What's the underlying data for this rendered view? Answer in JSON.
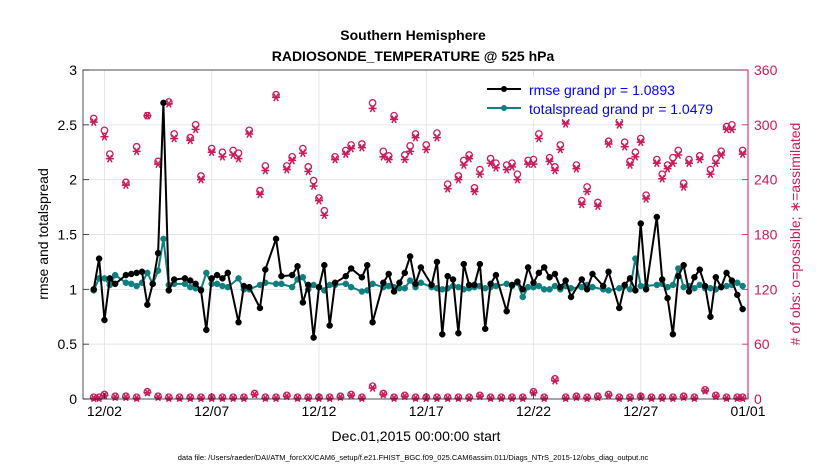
{
  "chart_data": {
    "type": "line",
    "title": "Southern Hemisphere",
    "subtitle": "RADIOSONDE_TEMPERATURE @ 525 hPa",
    "xlabel": "Dec.01,2015 00:00:00 start",
    "ylabel_left": "rmse and totalspread",
    "ylabel_right": "# of obs: o=possible; ∗=assimilated",
    "footnote": "data file: /Users/raeder/DAI/ATM_forcXX/CAM6_setup/f.e21.FHIST_BGC.f09_025.CAM6assim.011/Diags_NTrS_2015-12/obs_diag_output.nc",
    "xlim": [
      0.5,
      31.5
    ],
    "ylim_left": [
      0,
      3
    ],
    "ylim_right": [
      0,
      360
    ],
    "x_tick_days": [
      1.5,
      6.5,
      11.5,
      16.5,
      21.5,
      26.5,
      31.5
    ],
    "x_tick_labels": [
      "12/02",
      "12/07",
      "12/12",
      "12/17",
      "12/22",
      "12/27",
      "01/01"
    ],
    "y_ticks_left": [
      0,
      0.5,
      1,
      1.5,
      2,
      2.5,
      3
    ],
    "y_tick_labels_left": [
      "0",
      "0.5",
      "1",
      "1.5",
      "2",
      "2.5",
      "3"
    ],
    "y_ticks_right": [
      0,
      60,
      120,
      180,
      240,
      300,
      360
    ],
    "y_tick_labels_right": [
      "0",
      "60",
      "120",
      "180",
      "240",
      "300",
      "360"
    ],
    "colors": {
      "rmse": "#000000",
      "spread": "#0f7f7f",
      "obs": "#cc1a5a",
      "legend_text": "#0000ff",
      "grid": "#e6e6e6"
    },
    "legend": {
      "position": "top-right",
      "entries": [
        {
          "label": "rmse grand pr = 1.0893",
          "color": "#000000"
        },
        {
          "label": "totalspread grand pr = 1.0479",
          "color": "#0f7f7f"
        }
      ]
    },
    "series": [
      {
        "name": "rmse",
        "axis": "left",
        "x": [
          1.0,
          1.25,
          1.5,
          1.75,
          2.0,
          2.5,
          2.75,
          3.0,
          3.25,
          3.5,
          3.75,
          4.0,
          4.25,
          4.5,
          4.75,
          5.25,
          5.5,
          5.75,
          6.0,
          6.25,
          6.5,
          6.75,
          7.0,
          7.25,
          7.75,
          8.0,
          8.25,
          8.75,
          9.0,
          9.5,
          9.75,
          10.25,
          10.5,
          10.75,
          11.0,
          11.25,
          11.5,
          11.75,
          12.0,
          12.25,
          12.75,
          13.0,
          13.5,
          13.75,
          14.0,
          14.5,
          14.75,
          15.0,
          15.25,
          15.5,
          15.75,
          16.0,
          16.25,
          16.75,
          17.0,
          17.25,
          17.5,
          17.75,
          18.0,
          18.25,
          18.5,
          18.75,
          19.0,
          19.25,
          19.5,
          19.75,
          20.25,
          20.5,
          20.75,
          21.0,
          21.25,
          21.5,
          21.75,
          22.0,
          22.25,
          22.5,
          22.75,
          23.0,
          23.25,
          23.75,
          24.0,
          24.25,
          24.75,
          25.0,
          25.5,
          25.75,
          26.0,
          26.25,
          26.5,
          26.75,
          27.25,
          27.5,
          27.75,
          28.0,
          28.25,
          28.5,
          28.75,
          29.0,
          29.25,
          29.5,
          29.75,
          30.0,
          30.25,
          30.5,
          30.75,
          31.0,
          31.25
        ],
        "values": [
          1.0,
          1.28,
          0.72,
          1.1,
          1.05,
          1.13,
          1.14,
          1.15,
          1.16,
          0.86,
          1.05,
          1.33,
          2.7,
          0.99,
          1.09,
          1.1,
          1.08,
          1.05,
          0.99,
          0.63,
          1.1,
          1.13,
          1.1,
          1.15,
          0.7,
          1.03,
          1.02,
          0.83,
          1.18,
          1.46,
          1.12,
          1.13,
          1.21,
          0.88,
          1.04,
          0.56,
          1.02,
          1.22,
          0.67,
          1.06,
          1.12,
          1.19,
          1.11,
          1.22,
          0.7,
          1.06,
          1.14,
          0.98,
          1.06,
          1.15,
          1.3,
          1.05,
          1.2,
          1.04,
          1.25,
          0.59,
          1.12,
          1.09,
          0.6,
          1.23,
          1.04,
          1.04,
          1.23,
          0.64,
          1.05,
          1.13,
          0.8,
          1.04,
          1.07,
          1.0,
          1.2,
          1.06,
          1.15,
          1.2,
          1.11,
          1.14,
          1.02,
          1.08,
          0.93,
          1.09,
          1.0,
          1.14,
          1.03,
          1.16,
          0.83,
          1.04,
          1.1,
          0.99,
          1.6,
          1.0,
          1.66,
          1.09,
          0.92,
          0.59,
          1.12,
          1.22,
          0.98,
          1.11,
          1.18,
          1.03,
          0.75,
          1.11,
          1.02,
          1.15,
          1.08,
          0.95,
          0.82
        ]
      },
      {
        "name": "totalspread",
        "axis": "left",
        "x": [
          1.0,
          1.25,
          1.5,
          1.75,
          2.0,
          2.5,
          2.75,
          3.0,
          3.25,
          3.5,
          3.75,
          4.0,
          4.25,
          4.5,
          4.75,
          5.25,
          5.5,
          5.75,
          6.0,
          6.25,
          6.5,
          6.75,
          7.0,
          7.25,
          7.75,
          8.0,
          8.25,
          8.75,
          9.0,
          9.5,
          9.75,
          10.25,
          10.5,
          10.75,
          11.0,
          11.25,
          11.5,
          11.75,
          12.0,
          12.25,
          12.75,
          13.0,
          13.5,
          13.75,
          14.0,
          14.5,
          14.75,
          15.0,
          15.25,
          15.5,
          15.75,
          16.0,
          16.25,
          16.75,
          17.0,
          17.25,
          17.5,
          17.75,
          18.0,
          18.25,
          18.5,
          18.75,
          19.0,
          19.25,
          19.5,
          19.75,
          20.25,
          20.5,
          20.75,
          21.0,
          21.25,
          21.5,
          21.75,
          22.0,
          22.25,
          22.5,
          22.75,
          23.0,
          23.25,
          23.75,
          24.0,
          24.25,
          24.75,
          25.0,
          25.5,
          25.75,
          26.0,
          26.25,
          26.5,
          26.75,
          27.25,
          27.5,
          27.75,
          28.0,
          28.25,
          28.5,
          28.75,
          29.0,
          29.25,
          29.5,
          29.75,
          30.0,
          30.25,
          30.5,
          30.75,
          31.0,
          31.25
        ],
        "values": [
          0.99,
          1.1,
          1.1,
          1.04,
          1.13,
          1.06,
          1.05,
          1.03,
          1.06,
          1.15,
          1.05,
          1.17,
          1.46,
          1.04,
          1.05,
          1.05,
          1.02,
          1.01,
          1.0,
          1.15,
          1.05,
          1.05,
          1.03,
          1.02,
          1.1,
          1.0,
          1.0,
          1.04,
          1.06,
          1.05,
          1.05,
          1.02,
          1.09,
          1.11,
          1.0,
          1.04,
          1.02,
          0.99,
          1.04,
          1.04,
          1.05,
          1.02,
          0.98,
          0.99,
          1.05,
          1.02,
          1.03,
          1.02,
          1.01,
          1.01,
          1.08,
          1.02,
          1.06,
          1.02,
          1.01,
          1.0,
          1.01,
          1.03,
          1.02,
          1.0,
          1.01,
          1.02,
          1.03,
          1.01,
          1.02,
          1.03,
          1.05,
          1.03,
          1.06,
          0.93,
          1.02,
          1.02,
          1.03,
          1.0,
          1.0,
          1.03,
          1.0,
          1.03,
          1.01,
          1.02,
          1.04,
          1.02,
          1.0,
          0.99,
          1.01,
          1.03,
          1.0,
          1.28,
          1.03,
          1.03,
          1.04,
          1.05,
          1.02,
          1.04,
          1.19,
          1.02,
          1.03,
          1.01,
          1.04,
          1.01,
          1.01,
          1.0,
          1.02,
          1.03,
          1.04,
          1.06,
          1.03
        ]
      },
      {
        "name": "obs possible",
        "axis": "right",
        "marker": "o",
        "x": [
          1.0,
          1.5,
          1.75,
          2.5,
          3.0,
          3.5,
          4.0,
          4.5,
          4.75,
          5.5,
          5.75,
          6.0,
          6.5,
          7.0,
          7.5,
          7.75,
          8.25,
          8.75,
          9.0,
          9.5,
          10.0,
          10.25,
          10.75,
          11.0,
          11.25,
          11.5,
          11.75,
          12.25,
          12.75,
          13.0,
          13.5,
          14.0,
          14.5,
          14.75,
          15.0,
          15.5,
          15.75,
          16.0,
          16.5,
          17.0,
          17.5,
          18.0,
          18.25,
          18.5,
          18.75,
          19.0,
          19.5,
          19.75,
          20.25,
          20.5,
          20.75,
          21.25,
          21.5,
          21.75,
          22.25,
          22.5,
          22.75,
          23.0,
          23.5,
          23.75,
          24.0,
          24.5,
          25.0,
          25.5,
          25.75,
          26.0,
          26.25,
          26.5,
          26.75,
          27.25,
          27.5,
          27.75,
          28.0,
          28.25,
          28.5,
          28.75,
          29.25,
          29.75,
          30.0,
          30.25,
          30.5,
          30.75,
          31.25
        ],
        "values": [
          307,
          294,
          268,
          237,
          276,
          310,
          260,
          325,
          290,
          286,
          300,
          244,
          274,
          270,
          272,
          269,
          294,
          228,
          255,
          333,
          255,
          265,
          274,
          254,
          239,
          220,
          206,
          265,
          272,
          278,
          279,
          324,
          271,
          266,
          310,
          267,
          277,
          290,
          278,
          291,
          235,
          244,
          261,
          267,
          231,
          251,
          263,
          258,
          256,
          258,
          246,
          261,
          262,
          290,
          264,
          254,
          278,
          305,
          256,
          217,
          232,
          215,
          282,
          304,
          281,
          260,
          270,
          285,
          223,
          262,
          246,
          256,
          264,
          272,
          236,
          262,
          266,
          251,
          263,
          271,
          298,
          300,
          272
        ]
      },
      {
        "name": "obs assimilated",
        "axis": "right",
        "marker": "*",
        "x": [
          1.0,
          1.5,
          1.75,
          2.5,
          3.0,
          3.5,
          4.0,
          4.5,
          4.75,
          5.5,
          5.75,
          6.0,
          6.5,
          7.0,
          7.5,
          7.75,
          8.25,
          8.75,
          9.0,
          9.5,
          10.0,
          10.25,
          10.75,
          11.0,
          11.25,
          11.5,
          11.75,
          12.25,
          12.75,
          13.0,
          13.5,
          14.0,
          14.5,
          14.75,
          15.0,
          15.5,
          15.75,
          16.0,
          16.5,
          17.0,
          17.5,
          18.0,
          18.25,
          18.5,
          18.75,
          19.0,
          19.5,
          19.75,
          20.25,
          20.5,
          20.75,
          21.25,
          21.5,
          21.75,
          22.25,
          22.5,
          22.75,
          23.0,
          23.5,
          23.75,
          24.0,
          24.5,
          25.0,
          25.5,
          25.75,
          26.0,
          26.25,
          26.5,
          26.75,
          27.25,
          27.5,
          27.75,
          28.0,
          28.25,
          28.5,
          28.75,
          29.25,
          29.75,
          30.0,
          30.25,
          30.5,
          30.75,
          31.25
        ],
        "values": [
          303,
          287,
          263,
          234,
          271,
          310,
          257,
          323,
          285,
          283,
          295,
          240,
          270,
          265,
          267,
          263,
          290,
          224,
          250,
          330,
          251,
          261,
          269,
          249,
          233,
          217,
          201,
          262,
          268,
          274,
          275,
          318,
          265,
          262,
          306,
          262,
          271,
          286,
          273,
          286,
          230,
          240,
          256,
          263,
          227,
          246,
          258,
          253,
          251,
          254,
          240,
          257,
          257,
          285,
          260,
          250,
          273,
          301,
          252,
          213,
          227,
          211,
          279,
          300,
          276,
          256,
          265,
          281,
          219,
          258,
          241,
          252,
          258,
          267,
          232,
          258,
          262,
          246,
          258,
          267,
          295,
          295,
          268
        ]
      },
      {
        "name": "obs possible (bottom row)",
        "axis": "right",
        "marker": "o",
        "x": [
          1.0,
          1.25,
          1.5,
          2.0,
          2.5,
          3.0,
          3.5,
          4.0,
          4.5,
          5.0,
          5.5,
          6.0,
          6.5,
          7.0,
          7.5,
          8.0,
          8.5,
          9.0,
          9.5,
          10.0,
          10.5,
          11.0,
          11.5,
          12.0,
          12.5,
          13.0,
          13.5,
          14.0,
          14.5,
          15.0,
          15.5,
          16.0,
          16.5,
          17.0,
          17.5,
          18.0,
          18.5,
          19.0,
          19.5,
          20.0,
          20.5,
          21.0,
          21.5,
          22.0,
          22.5,
          23.0,
          23.5,
          24.0,
          24.5,
          25.0,
          25.5,
          26.0,
          26.5,
          27.0,
          27.5,
          28.0,
          28.5,
          29.0,
          29.5,
          30.0,
          30.5,
          31.0,
          31.25
        ],
        "values": [
          2,
          2,
          5,
          3,
          3,
          2,
          8,
          3,
          2,
          2,
          2,
          2,
          2,
          2,
          2,
          2,
          6,
          2,
          2,
          4,
          2,
          2,
          2,
          2,
          3,
          5,
          2,
          14,
          6,
          2,
          4,
          2,
          2,
          2,
          2,
          2,
          2,
          4,
          2,
          2,
          2,
          2,
          8,
          2,
          22,
          2,
          3,
          2,
          3,
          5,
          2,
          2,
          3,
          2,
          2,
          2,
          3,
          2,
          10,
          4,
          2,
          2,
          2
        ]
      },
      {
        "name": "obs assimilated (bottom row)",
        "axis": "right",
        "marker": "*",
        "x": [
          1.0,
          1.25,
          1.5,
          2.0,
          2.5,
          3.0,
          3.5,
          4.0,
          4.5,
          5.0,
          5.5,
          6.0,
          6.5,
          7.0,
          7.5,
          8.0,
          8.5,
          9.0,
          9.5,
          10.0,
          10.5,
          11.0,
          11.5,
          12.0,
          12.5,
          13.0,
          13.5,
          14.0,
          14.5,
          15.0,
          15.5,
          16.0,
          16.5,
          17.0,
          17.5,
          18.0,
          18.5,
          19.0,
          19.5,
          20.0,
          20.5,
          21.0,
          21.5,
          22.0,
          22.5,
          23.0,
          23.5,
          24.0,
          24.5,
          25.0,
          25.5,
          26.0,
          26.5,
          27.0,
          27.5,
          28.0,
          28.5,
          29.0,
          29.5,
          30.0,
          30.5,
          31.0,
          31.25
        ],
        "values": [
          1,
          1,
          4,
          2,
          2,
          1,
          7,
          2,
          1,
          1,
          1,
          1,
          1,
          1,
          1,
          1,
          5,
          1,
          1,
          3,
          1,
          1,
          1,
          1,
          2,
          4,
          1,
          12,
          5,
          1,
          3,
          1,
          1,
          1,
          1,
          1,
          1,
          3,
          1,
          1,
          1,
          1,
          7,
          1,
          20,
          1,
          2,
          1,
          2,
          4,
          1,
          1,
          2,
          1,
          1,
          1,
          2,
          1,
          9,
          3,
          1,
          1,
          1
        ]
      }
    ]
  }
}
